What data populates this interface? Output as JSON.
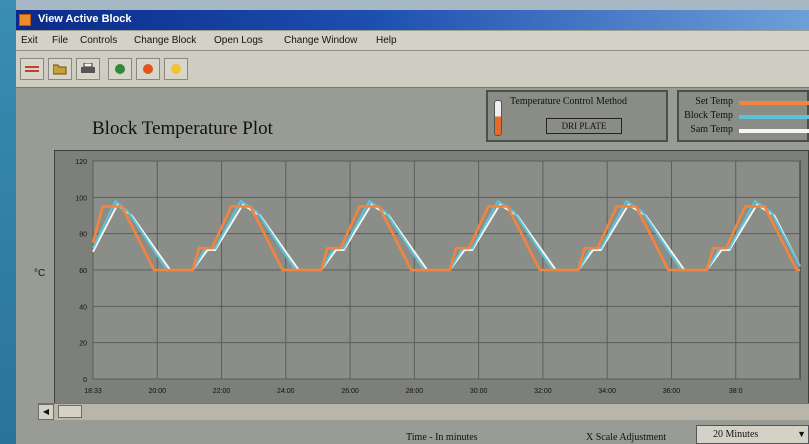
{
  "window": {
    "title": "View Active Block"
  },
  "menu": [
    "Exit",
    "File",
    "Controls",
    "Change Block",
    "Open Logs",
    "Change Window",
    "Help"
  ],
  "toolbar": [
    {
      "icon": "block-icon",
      "color": "#c0442a"
    },
    {
      "icon": "folder-open-icon",
      "color": "#c8a13a"
    },
    {
      "icon": "printer-icon",
      "color": "#555555"
    },
    {
      "icon": "start-run-icon",
      "color": "#2f8a3a"
    },
    {
      "icon": "stop-icon",
      "color": "#e0541e"
    },
    {
      "icon": "pause-icon",
      "color": "#f1c232"
    }
  ],
  "plot_title": "Block Temperature Plot",
  "temp_control": {
    "label": "Temperature Control Method",
    "value": "DRI PLATE"
  },
  "legend": [
    {
      "label": "Set Temp",
      "color": "#f2843f"
    },
    {
      "label": "Block Temp",
      "color": "#5cc3d6"
    },
    {
      "label": "Sam Temp",
      "color": "#f5f5f5"
    }
  ],
  "y_axis_label": "°C",
  "x_axis_label": "Time - In minutes",
  "scale_label": "X Scale Adjustment",
  "scale_value": "20 Minutes",
  "chart_data": {
    "type": "line",
    "ylabel": "°C",
    "xlabel": "Time - In minutes",
    "ylim": [
      0,
      120
    ],
    "yticks": [
      "0",
      "20",
      "40",
      "60",
      "80",
      "100",
      "120"
    ],
    "xtick_labels": [
      "18:33",
      "20:00",
      "22:00",
      "24:00",
      "26:00",
      "28:00",
      "30:00",
      "32:00",
      "34:00",
      "36:00",
      "38:0"
    ],
    "xlim": [
      0,
      11
    ],
    "grid": true,
    "series": [
      {
        "name": "Set Temp",
        "points": [
          [
            0,
            75
          ],
          [
            0.15,
            95
          ],
          [
            0.45,
            95
          ],
          [
            0.95,
            60
          ],
          [
            1.55,
            60
          ],
          [
            1.65,
            72
          ],
          [
            1.85,
            72
          ],
          [
            2.15,
            95
          ],
          [
            2.45,
            95
          ],
          [
            2.95,
            60
          ],
          [
            3.55,
            60
          ],
          [
            3.65,
            72
          ],
          [
            3.85,
            72
          ],
          [
            4.15,
            95
          ],
          [
            4.45,
            95
          ],
          [
            4.95,
            60
          ],
          [
            5.55,
            60
          ],
          [
            5.65,
            72
          ],
          [
            5.85,
            72
          ],
          [
            6.15,
            95
          ],
          [
            6.45,
            95
          ],
          [
            6.95,
            60
          ],
          [
            7.55,
            60
          ],
          [
            7.65,
            72
          ],
          [
            7.85,
            72
          ],
          [
            8.15,
            95
          ],
          [
            8.45,
            95
          ],
          [
            8.95,
            60
          ],
          [
            9.55,
            60
          ],
          [
            9.65,
            72
          ],
          [
            9.85,
            72
          ],
          [
            10.15,
            95
          ],
          [
            10.45,
            95
          ],
          [
            10.95,
            60
          ],
          [
            11,
            60
          ]
        ]
      },
      {
        "name": "Block Temp",
        "points": [
          [
            0,
            72
          ],
          [
            0.35,
            98
          ],
          [
            0.55,
            92
          ],
          [
            1.15,
            60
          ],
          [
            1.55,
            60
          ],
          [
            1.75,
            72
          ],
          [
            1.9,
            72
          ],
          [
            2.3,
            98
          ],
          [
            2.55,
            92
          ],
          [
            3.15,
            60
          ],
          [
            3.55,
            60
          ],
          [
            3.75,
            72
          ],
          [
            3.9,
            72
          ],
          [
            4.3,
            98
          ],
          [
            4.55,
            92
          ],
          [
            5.15,
            60
          ],
          [
            5.55,
            60
          ],
          [
            5.75,
            72
          ],
          [
            5.9,
            72
          ],
          [
            6.3,
            98
          ],
          [
            6.55,
            92
          ],
          [
            7.15,
            60
          ],
          [
            7.55,
            60
          ],
          [
            7.75,
            72
          ],
          [
            7.9,
            72
          ],
          [
            8.3,
            98
          ],
          [
            8.55,
            92
          ],
          [
            9.15,
            60
          ],
          [
            9.55,
            60
          ],
          [
            9.75,
            72
          ],
          [
            9.9,
            72
          ],
          [
            10.3,
            98
          ],
          [
            10.55,
            92
          ],
          [
            11,
            62
          ]
        ]
      },
      {
        "name": "Sam Temp",
        "points": [
          [
            0,
            70
          ],
          [
            0.38,
            96
          ],
          [
            0.6,
            90
          ],
          [
            1.2,
            60
          ],
          [
            1.55,
            60
          ],
          [
            1.78,
            71
          ],
          [
            1.9,
            71
          ],
          [
            2.33,
            96
          ],
          [
            2.6,
            90
          ],
          [
            3.2,
            60
          ],
          [
            3.55,
            60
          ],
          [
            3.78,
            71
          ],
          [
            3.9,
            71
          ],
          [
            4.33,
            96
          ],
          [
            4.6,
            90
          ],
          [
            5.2,
            60
          ],
          [
            5.55,
            60
          ],
          [
            5.78,
            71
          ],
          [
            5.9,
            71
          ],
          [
            6.33,
            96
          ],
          [
            6.6,
            90
          ],
          [
            7.2,
            60
          ],
          [
            7.55,
            60
          ],
          [
            7.78,
            71
          ],
          [
            7.9,
            71
          ],
          [
            8.33,
            96
          ],
          [
            8.6,
            90
          ],
          [
            9.2,
            60
          ],
          [
            9.55,
            60
          ],
          [
            9.78,
            71
          ],
          [
            9.9,
            71
          ],
          [
            10.33,
            96
          ],
          [
            10.6,
            90
          ],
          [
            11,
            62
          ]
        ]
      }
    ]
  }
}
